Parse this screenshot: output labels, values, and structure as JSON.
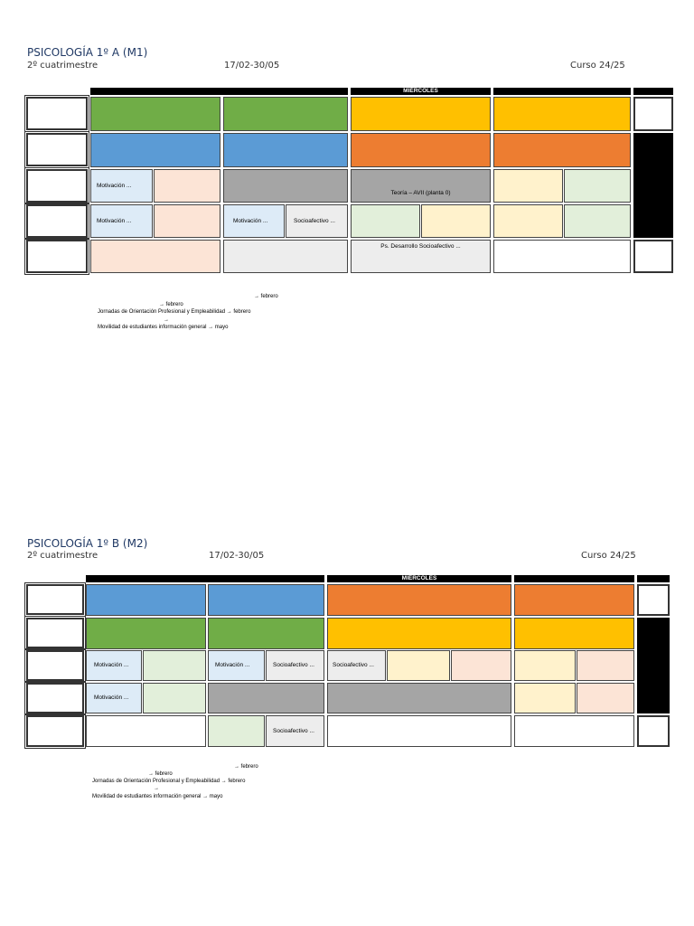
{
  "section_a": {
    "title": "PSICOLOGÍA 1º A (M1)",
    "semester": "2º cuatrimestre",
    "dates": "17/02-30/05",
    "course": "Curso 24/25",
    "day_header": "MIÉRCOLES",
    "cells": {
      "r3_mon_a": "Motivación ...",
      "r3_wed": "Teoría – AVII (planta 0)",
      "r4_mon_a": "Motivación ...",
      "r4_tue_a": "Motivación ...",
      "r4_tue_b": "Socioafectivo ...",
      "r5_wed": "Ps. Desarrollo Socioafectivo ..."
    },
    "notes": {
      "line1": "→ febrero",
      "line2": "→ febrero",
      "line3": "Jornadas de Orientación Profesional y Empleabilidad → febrero",
      "line4": "→",
      "line5": "Movilidad de estudiantes información general → mayo"
    }
  },
  "section_b": {
    "title": "PSICOLOGÍA 1º B (M2)",
    "semester": "2º cuatrimestre",
    "dates": "17/02-30/05",
    "course": "Curso 24/25",
    "day_header": "MIÉRCOLES",
    "cells": {
      "r3_mon_a": "Motivación ...",
      "r3_tue_a": "Motivación ...",
      "r3_tue_b": "Socioafectivo ...",
      "r3_wed_a": "Socioafectivo ...",
      "r4_mon_a": "Motivación ...",
      "r5_tue_b": "Socioafectivo ..."
    },
    "notes": {
      "line1": "→ febrero",
      "line2": "→ febrero",
      "line3": "Jornadas de Orientación Profesional y Empleabilidad → febrero",
      "line4": "→",
      "line5": "Movilidad de estudiantes información general → mayo"
    }
  }
}
